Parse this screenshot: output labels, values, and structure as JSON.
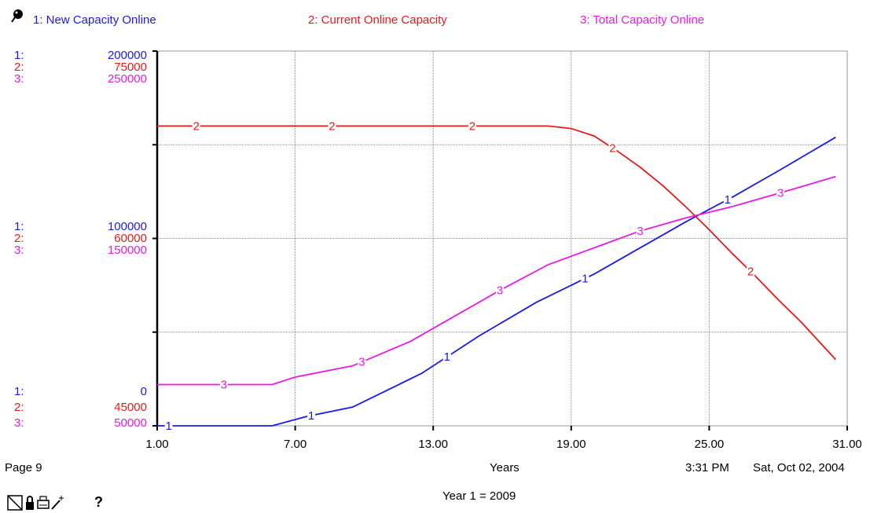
{
  "legend": {
    "s1": "1: New Capacity  Online",
    "s2": "2: Current Online Capacity",
    "s3": "3: Total Capacity  Online"
  },
  "axis_labels": {
    "top": {
      "p1": "1:",
      "v1": "200000",
      "p2": "2:",
      "v2": "75000",
      "p3": "3:",
      "v3": "250000"
    },
    "mid": {
      "p1": "1:",
      "v1": "100000",
      "p2": "2:",
      "v2": "60000",
      "p3": "3:",
      "v3": "150000"
    },
    "bot": {
      "p1": "1:",
      "v1": "0",
      "p2": "2:",
      "v2": "45000",
      "p3": "3:",
      "v3": "50000"
    }
  },
  "footer": {
    "page": "Page 9",
    "xlabel": "Years",
    "time": "3:31 PM",
    "date": "Sat, Oct 02, 2004",
    "note": "Year 1 = 2009"
  },
  "toolbar": {
    "help": "?"
  },
  "colors": {
    "s1": "#1a1ae6",
    "s2": "#e61a1a",
    "s3": "#e61ae6"
  },
  "chart_data": {
    "type": "line",
    "xlabel": "Years",
    "x_ticks": [
      "1.00",
      "7.00",
      "13.00",
      "19.00",
      "25.00",
      "31.00"
    ],
    "xlim": [
      1,
      31
    ],
    "grid": true,
    "series": [
      {
        "name": "New Capacity  Online",
        "marker": "1",
        "ylim": [
          0,
          200000
        ],
        "x": [
          1,
          4,
          6,
          7.5,
          9.5,
          12.5,
          15,
          17.5,
          20,
          22,
          24,
          26,
          28,
          30.5
        ],
        "y": [
          0,
          0,
          0,
          5000,
          10000,
          28000,
          48000,
          66000,
          81000,
          95000,
          109000,
          122000,
          136000,
          154000
        ]
      },
      {
        "name": "Current Online Capacity",
        "marker": "2",
        "ylim": [
          45000,
          75000
        ],
        "x": [
          1,
          5,
          10,
          15,
          18,
          19,
          20,
          21,
          22,
          23,
          24,
          25,
          26,
          27,
          28,
          29,
          30.5
        ],
        "y": [
          69000,
          69000,
          69000,
          69000,
          69000,
          68800,
          68200,
          67000,
          65700,
          64200,
          62500,
          60700,
          58800,
          57000,
          55100,
          53300,
          50300
        ]
      },
      {
        "name": "Total Capacity  Online",
        "marker": "3",
        "ylim": [
          50000,
          250000
        ],
        "x": [
          1,
          4,
          6,
          7,
          9.5,
          12,
          14,
          16,
          18,
          20,
          22,
          24,
          26,
          28,
          30.5
        ],
        "y": [
          72000,
          72000,
          72000,
          76000,
          82000,
          95000,
          109000,
          123000,
          136000,
          145000,
          154000,
          161000,
          167000,
          174000,
          183000
        ]
      }
    ],
    "label_positions": {
      "1": [
        1.5,
        7.7,
        13.6,
        19.6,
        25.8
      ],
      "2": [
        2.7,
        8.6,
        14.7,
        20.8,
        26.8
      ],
      "3": [
        3.9,
        9.9,
        15.9,
        22,
        28.1
      ]
    }
  }
}
